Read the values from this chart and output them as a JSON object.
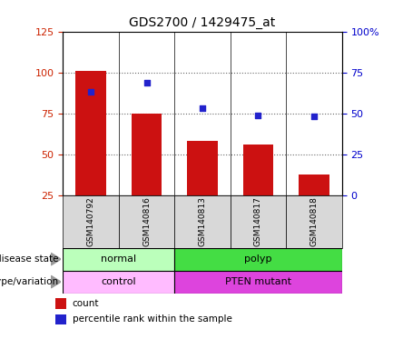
{
  "title": "GDS2700 / 1429475_at",
  "samples": [
    "GSM140792",
    "GSM140816",
    "GSM140813",
    "GSM140817",
    "GSM140818"
  ],
  "bar_values": [
    101,
    75,
    58,
    56,
    38
  ],
  "bar_bottom": 25,
  "percentile_values": [
    63,
    69,
    53,
    49,
    48
  ],
  "left_ylim": [
    25,
    125
  ],
  "left_yticks": [
    25,
    50,
    75,
    100,
    125
  ],
  "right_ylim": [
    0,
    100
  ],
  "right_yticks": [
    0,
    25,
    50,
    75,
    100
  ],
  "bar_color": "#cc1111",
  "dot_color": "#2222cc",
  "disease_state": [
    [
      "normal",
      2
    ],
    [
      "polyp",
      3
    ]
  ],
  "disease_colors": [
    "#bbffbb",
    "#44dd44"
  ],
  "genotype": [
    [
      "control",
      2
    ],
    [
      "PTEN mutant",
      3
    ]
  ],
  "genotype_colors": [
    "#ffbbff",
    "#dd44dd"
  ],
  "legend_items": [
    "count",
    "percentile rank within the sample"
  ],
  "sample_bg": "#d8d8d8",
  "gridline_values": [
    50,
    75,
    100
  ],
  "left_axis_color": "#cc2200",
  "right_axis_color": "#0000cc"
}
